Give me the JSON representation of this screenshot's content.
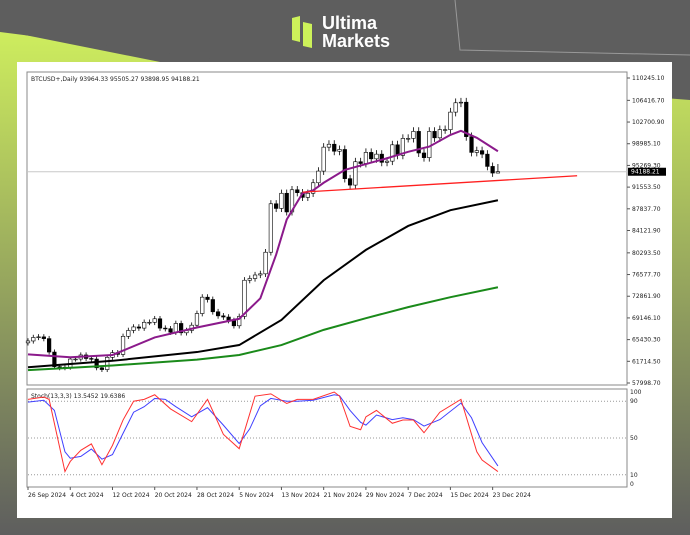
{
  "brand": {
    "line1": "Ultima",
    "line2": "Markets",
    "accent": "#cdf25a"
  },
  "chart_data": {
    "type": "candlestick",
    "header": "BTCUSD+,Daily  93964.33 95505.27 93898.95 94188.21",
    "symbol": "BTCUSD+",
    "timeframe": "Daily",
    "last": {
      "open": 93964.33,
      "high": 95505.27,
      "low": 93898.95,
      "close": 94188.21,
      "label": "94188.21"
    },
    "start_date": "2024-09-26",
    "closes": [
      65200,
      65800,
      65900,
      65600,
      63300,
      60800,
      60600,
      60700,
      62100,
      62100,
      62800,
      62200,
      62100,
      60600,
      60300,
      62400,
      63200,
      62900,
      66000,
      67000,
      67600,
      67400,
      68400,
      68400,
      69000,
      67400,
      67300,
      66700,
      68200,
      66600,
      67000,
      67900,
      69900,
      72700,
      72300,
      70200,
      69500,
      69300,
      68700,
      67800,
      69400,
      75600,
      75900,
      76500,
      76700,
      80400,
      88700,
      87900,
      90500,
      87300,
      91100,
      90600,
      89800,
      90500,
      92300,
      94300,
      98400,
      98900,
      97700,
      98000,
      93000,
      91900,
      95900,
      95600,
      97500,
      96400,
      97200,
      95800,
      96000,
      98800,
      97000,
      99900,
      99900,
      101100,
      97400,
      96600,
      101100,
      100000,
      101400,
      101400,
      104400,
      106000,
      106100,
      100200,
      97500,
      97800,
      97200,
      95100,
      93964.33,
      94188.21
    ],
    "y_ticks": [
      "110245.10",
      "106416.70",
      "102700.90",
      "98985.10",
      "95269.30",
      "91553.50",
      "87837.70",
      "84121.90",
      "80293.50",
      "76577.70",
      "72861.90",
      "69146.10",
      "65430.30",
      "61714.50",
      "57998.70"
    ],
    "ylim": [
      57998.7,
      110245.1
    ],
    "x_ticks": [
      "26 Sep 2024",
      "4 Oct 2024",
      "12 Oct 2024",
      "20 Oct 2024",
      "28 Oct 2024",
      "5 Nov 2024",
      "13 Nov 2024",
      "21 Nov 2024",
      "29 Nov 2024",
      "7 Dec 2024",
      "15 Dec 2024",
      "23 Dec 2024"
    ],
    "moving_averages": [
      {
        "color": "#8b1a8b",
        "points": [
          [
            "2024-09-26",
            62900
          ],
          [
            "2024-10-04",
            62400
          ],
          [
            "2024-10-12",
            62800
          ],
          [
            "2024-10-20",
            65800
          ],
          [
            "2024-10-28",
            67500
          ],
          [
            "2024-11-05",
            69000
          ],
          [
            "2024-11-09",
            72500
          ],
          [
            "2024-11-12",
            80000
          ],
          [
            "2024-11-14",
            86000
          ],
          [
            "2024-11-17",
            90500
          ],
          [
            "2024-11-19",
            91000
          ],
          [
            "2024-11-21",
            92300
          ],
          [
            "2024-11-25",
            94500
          ],
          [
            "2024-11-29",
            95500
          ],
          [
            "2024-12-03",
            96500
          ],
          [
            "2024-12-07",
            97600
          ],
          [
            "2024-12-11",
            98500
          ],
          [
            "2024-12-15",
            100500
          ],
          [
            "2024-12-17",
            101200
          ],
          [
            "2024-12-20",
            100000
          ],
          [
            "2024-12-24",
            97700
          ]
        ]
      },
      {
        "color": "#000000",
        "points": [
          [
            "2024-09-26",
            60700
          ],
          [
            "2024-10-12",
            61800
          ],
          [
            "2024-10-28",
            63300
          ],
          [
            "2024-11-05",
            64500
          ],
          [
            "2024-11-13",
            68800
          ],
          [
            "2024-11-21",
            75600
          ],
          [
            "2024-11-29",
            80800
          ],
          [
            "2024-12-07",
            84900
          ],
          [
            "2024-12-15",
            87600
          ],
          [
            "2024-12-24",
            89300
          ]
        ]
      },
      {
        "color": "#1a8a1a",
        "points": [
          [
            "2024-09-26",
            60200
          ],
          [
            "2024-10-12",
            61000
          ],
          [
            "2024-10-28",
            62000
          ],
          [
            "2024-11-05",
            62800
          ],
          [
            "2024-11-13",
            64500
          ],
          [
            "2024-11-21",
            67100
          ],
          [
            "2024-11-29",
            69100
          ],
          [
            "2024-12-07",
            71000
          ],
          [
            "2024-12-15",
            72700
          ],
          [
            "2024-12-24",
            74400
          ]
        ]
      }
    ],
    "trendline": {
      "color": "#ff2020",
      "from": [
        "2024-11-17",
        90700
      ],
      "to": [
        "2025-01-08",
        93500
      ]
    },
    "current_price_line": 94188.21,
    "stochastic": {
      "label": "Stoch(13,3,3) 13.5452 19.6386",
      "main": 13.5452,
      "signal": 19.6386,
      "levels": [
        "100",
        "90",
        "50",
        "10",
        "0"
      ],
      "k_color": "#ff3030",
      "d_color": "#4040ff",
      "k": [
        [
          "2024-09-26",
          92
        ],
        [
          "2024-09-29",
          94.5
        ],
        [
          "2024-09-30",
          92
        ],
        [
          "2024-10-03",
          13.5
        ],
        [
          "2024-10-04",
          24.5
        ],
        [
          "2024-10-06",
          36.6
        ],
        [
          "2024-10-08",
          43.6
        ],
        [
          "2024-10-10",
          21
        ],
        [
          "2024-10-12",
          42
        ],
        [
          "2024-10-14",
          69.5
        ],
        [
          "2024-10-16",
          90
        ],
        [
          "2024-10-18",
          92
        ],
        [
          "2024-10-20",
          97
        ],
        [
          "2024-10-23",
          81.6
        ],
        [
          "2024-10-27",
          67.8
        ],
        [
          "2024-10-30",
          92
        ],
        [
          "2024-11-02",
          54
        ],
        [
          "2024-11-05",
          38.4
        ],
        [
          "2024-11-08",
          95.5
        ],
        [
          "2024-11-11",
          98
        ],
        [
          "2024-11-14",
          87.5
        ],
        [
          "2024-11-16",
          92
        ],
        [
          "2024-11-19",
          92
        ],
        [
          "2024-11-23",
          100
        ],
        [
          "2024-11-24",
          95.5
        ],
        [
          "2024-11-26",
          62.6
        ],
        [
          "2024-11-28",
          59
        ],
        [
          "2024-11-29",
          73
        ],
        [
          "2024-12-01",
          80
        ],
        [
          "2024-12-04",
          66
        ],
        [
          "2024-12-06",
          69.5
        ],
        [
          "2024-12-08",
          69.5
        ],
        [
          "2024-12-10",
          55.7
        ],
        [
          "2024-12-13",
          78
        ],
        [
          "2024-12-17",
          92
        ],
        [
          "2024-12-20",
          35
        ],
        [
          "2024-12-21",
          26
        ],
        [
          "2024-12-24",
          13.5
        ]
      ],
      "d": [
        [
          "2024-09-26",
          89
        ],
        [
          "2024-09-29",
          91
        ],
        [
          "2024-10-01",
          80
        ],
        [
          "2024-10-03",
          35
        ],
        [
          "2024-10-04",
          28
        ],
        [
          "2024-10-06",
          30
        ],
        [
          "2024-10-08",
          38
        ],
        [
          "2024-10-10",
          27
        ],
        [
          "2024-10-12",
          32
        ],
        [
          "2024-10-14",
          55
        ],
        [
          "2024-10-16",
          78
        ],
        [
          "2024-10-18",
          84
        ],
        [
          "2024-10-20",
          93
        ],
        [
          "2024-10-22",
          92
        ],
        [
          "2024-10-24",
          84
        ],
        [
          "2024-10-27",
          73
        ],
        [
          "2024-10-30",
          83
        ],
        [
          "2024-11-02",
          64
        ],
        [
          "2024-11-05",
          44
        ],
        [
          "2024-11-07",
          60
        ],
        [
          "2024-11-09",
          85
        ],
        [
          "2024-11-11",
          93
        ],
        [
          "2024-11-14",
          90
        ],
        [
          "2024-11-16",
          90
        ],
        [
          "2024-11-19",
          91
        ],
        [
          "2024-11-23",
          97
        ],
        [
          "2024-11-24",
          96
        ],
        [
          "2024-11-26",
          80
        ],
        [
          "2024-11-28",
          67
        ],
        [
          "2024-11-29",
          64
        ],
        [
          "2024-12-01",
          75
        ],
        [
          "2024-12-04",
          70
        ],
        [
          "2024-12-06",
          72
        ],
        [
          "2024-12-08",
          70
        ],
        [
          "2024-12-10",
          63
        ],
        [
          "2024-12-13",
          70
        ],
        [
          "2024-12-17",
          88
        ],
        [
          "2024-12-19",
          72
        ],
        [
          "2024-12-21",
          45
        ],
        [
          "2024-12-24",
          19.6386
        ]
      ]
    }
  }
}
